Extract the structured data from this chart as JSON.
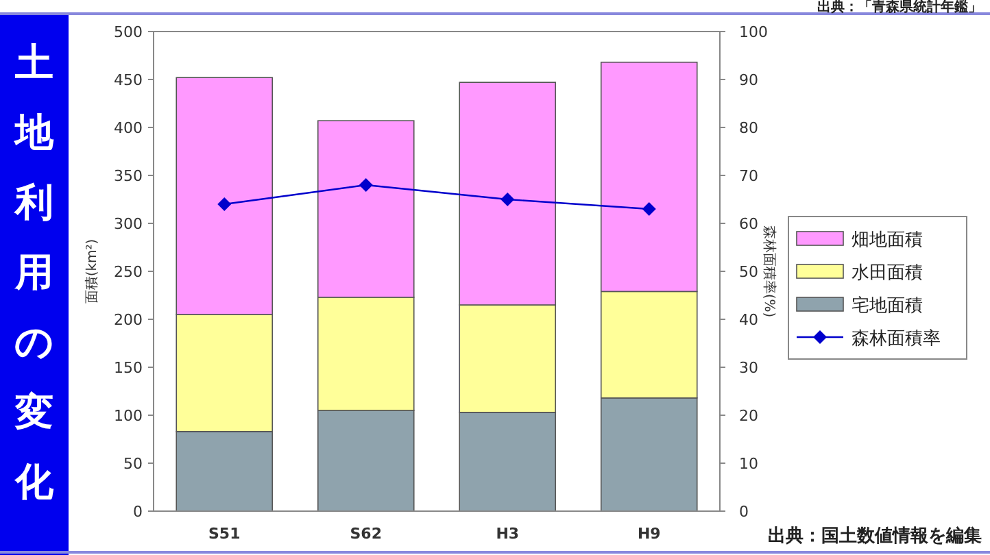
{
  "chart_data": {
    "type": "bar",
    "stacked": true,
    "title": "土地利用の変化",
    "categories": [
      "S51",
      "S62",
      "H3",
      "H9"
    ],
    "series": [
      {
        "name": "宅地面積",
        "color": "#8fa3ad",
        "values": [
          83,
          105,
          103,
          118
        ]
      },
      {
        "name": "水田面積",
        "color": "#ffff99",
        "values": [
          122,
          118,
          112,
          111
        ]
      },
      {
        "name": "畑地面積",
        "color": "#ff99ff",
        "values": [
          247,
          184,
          232,
          239
        ]
      },
      {
        "name": "森林面積率",
        "type": "line",
        "axis": "y2",
        "color": "#0000cc",
        "marker": "diamond",
        "values": [
          64,
          68,
          65,
          63
        ]
      }
    ],
    "ylabel": "面積(km²)",
    "y2label": "森林面積率(%)",
    "ylim": [
      0,
      500
    ],
    "yticks": [
      0,
      50,
      100,
      150,
      200,
      250,
      300,
      350,
      400,
      450,
      500
    ],
    "y2lim": [
      0,
      100
    ],
    "y2ticks": [
      0,
      10,
      20,
      30,
      40,
      50,
      60,
      70,
      80,
      90,
      100
    ],
    "legend": "right",
    "grid": false,
    "annotations": [
      "出典：「青森県統計年鑑」",
      "出典：国土数値情報を編集"
    ]
  }
}
